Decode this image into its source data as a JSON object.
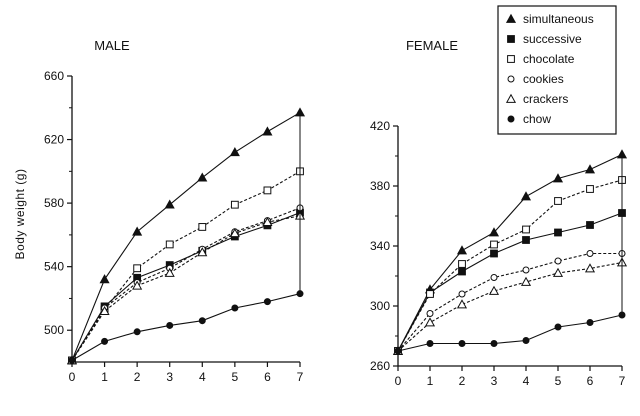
{
  "ylabel": "Body weight (g)",
  "legend": [
    {
      "name": "simultaneous",
      "marker": "triangle-filled",
      "dash": "solid"
    },
    {
      "name": "successive",
      "marker": "square-filled",
      "dash": "solid"
    },
    {
      "name": "chocolate",
      "marker": "square-open",
      "dash": "dashed"
    },
    {
      "name": "cookies",
      "marker": "circle-open",
      "dash": "dashed"
    },
    {
      "name": "crackers",
      "marker": "triangle-open",
      "dash": "dashed"
    },
    {
      "name": "chow",
      "marker": "circle-filled",
      "dash": "solid"
    }
  ],
  "chart_data": [
    {
      "type": "line",
      "title": "MALE",
      "ylabel": "Body weight (g)",
      "xlabel": "",
      "x": [
        0,
        1,
        2,
        3,
        4,
        5,
        6,
        7
      ],
      "xlim": [
        0,
        7
      ],
      "ylim": [
        480,
        660
      ],
      "yticks": [
        500,
        540,
        580,
        620,
        660
      ],
      "grid": false,
      "series": [
        {
          "name": "simultaneous",
          "values": [
            481,
            532,
            562,
            579,
            596,
            612,
            625,
            637
          ]
        },
        {
          "name": "successive",
          "values": [
            481,
            515,
            533,
            541,
            550,
            559,
            566,
            574
          ]
        },
        {
          "name": "chocolate",
          "values": [
            481,
            513,
            539,
            554,
            565,
            579,
            588,
            600
          ]
        },
        {
          "name": "cookies",
          "values": [
            481,
            514,
            530,
            539,
            551,
            562,
            569,
            577
          ]
        },
        {
          "name": "crackers",
          "values": [
            481,
            512,
            528,
            536,
            549,
            561,
            568,
            572
          ]
        },
        {
          "name": "chow",
          "values": [
            481,
            493,
            499,
            503,
            506,
            514,
            518,
            523
          ]
        }
      ]
    },
    {
      "type": "line",
      "title": "FEMALE",
      "ylabel": "",
      "xlabel": "",
      "x": [
        0,
        1,
        2,
        3,
        4,
        5,
        6,
        7
      ],
      "xlim": [
        0,
        7
      ],
      "ylim": [
        260,
        420
      ],
      "yticks": [
        260,
        300,
        340,
        380,
        420
      ],
      "grid": false,
      "series": [
        {
          "name": "simultaneous",
          "values": [
            270,
            311,
            337,
            349,
            373,
            385,
            391,
            401
          ]
        },
        {
          "name": "successive",
          "values": [
            270,
            309,
            323,
            335,
            344,
            349,
            354,
            362
          ]
        },
        {
          "name": "chocolate",
          "values": [
            270,
            308,
            328,
            341,
            351,
            370,
            378,
            384
          ]
        },
        {
          "name": "cookies",
          "values": [
            270,
            295,
            308,
            319,
            324,
            330,
            335,
            335
          ]
        },
        {
          "name": "crackers",
          "values": [
            270,
            289,
            301,
            310,
            316,
            322,
            325,
            329
          ]
        },
        {
          "name": "chow",
          "values": [
            270,
            275,
            275,
            275,
            277,
            286,
            289,
            294
          ]
        }
      ]
    }
  ]
}
